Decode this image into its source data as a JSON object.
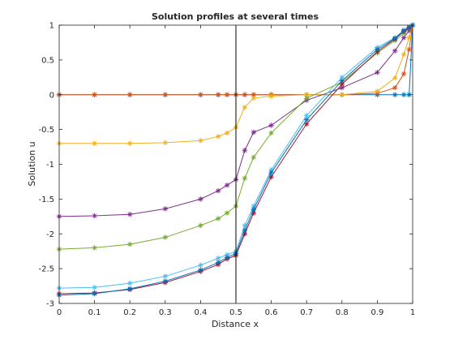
{
  "chart_data": {
    "type": "line",
    "title": "Solution profiles at several times",
    "xlabel": "Distance x",
    "ylabel": "Solution u",
    "xlim": [
      0,
      1
    ],
    "ylim": [
      -3,
      1
    ],
    "x_ticks": [
      "0",
      "0.1",
      "0.2",
      "0.3",
      "0.4",
      "0.5",
      "0.6",
      "0.7",
      "0.8",
      "0.9",
      "1"
    ],
    "y_ticks": [
      "1",
      "0.5",
      "0",
      "-0.5",
      "-1",
      "-1.5",
      "-2",
      "-2.5",
      "-3"
    ],
    "grid": false,
    "legend": false,
    "vertical_line_x": 0.5,
    "x": [
      0,
      0.1,
      0.2,
      0.3,
      0.4,
      0.45,
      0.475,
      0.5,
      0.525,
      0.55,
      0.6,
      0.7,
      0.8,
      0.9,
      0.95,
      0.975,
      0.99,
      1
    ],
    "series": [
      {
        "color": "#0072bd",
        "values": [
          0,
          0,
          0,
          0,
          0,
          0,
          0,
          0,
          0,
          0,
          0,
          0,
          0,
          0,
          0,
          0,
          0,
          1
        ]
      },
      {
        "color": "#d95319",
        "values": [
          0,
          0,
          0,
          0,
          0,
          0,
          0,
          0,
          0,
          0,
          0,
          0,
          0,
          0.02,
          0.1,
          0.3,
          0.65,
          1
        ]
      },
      {
        "color": "#edb120",
        "values": [
          -0.7,
          -0.7,
          -0.7,
          -0.69,
          -0.66,
          -0.6,
          -0.55,
          -0.47,
          -0.18,
          -0.05,
          -0.02,
          0,
          0,
          0.05,
          0.24,
          0.58,
          0.82,
          1
        ]
      },
      {
        "color": "#7e2f8e",
        "values": [
          -1.75,
          -1.74,
          -1.72,
          -1.64,
          -1.5,
          -1.38,
          -1.3,
          -1.22,
          -0.8,
          -0.54,
          -0.44,
          -0.08,
          0.1,
          0.32,
          0.63,
          0.82,
          0.92,
          1
        ]
      },
      {
        "color": "#77ac30",
        "values": [
          -2.22,
          -2.2,
          -2.15,
          -2.05,
          -1.88,
          -1.78,
          -1.7,
          -1.6,
          -1.2,
          -0.9,
          -0.55,
          -0.05,
          0.18,
          0.6,
          0.78,
          0.88,
          0.95,
          1
        ]
      },
      {
        "color": "#4dbeee",
        "values": [
          -2.78,
          -2.77,
          -2.71,
          -2.61,
          -2.45,
          -2.35,
          -2.3,
          -2.25,
          -1.88,
          -1.6,
          -1.08,
          -0.3,
          0.25,
          0.68,
          0.82,
          0.93,
          0.97,
          1
        ]
      },
      {
        "color": "#a2142f",
        "values": [
          -2.86,
          -2.85,
          -2.8,
          -2.7,
          -2.54,
          -2.44,
          -2.36,
          -2.31,
          -2.0,
          -1.7,
          -1.18,
          -0.42,
          0.15,
          0.62,
          0.8,
          0.91,
          0.96,
          1
        ]
      },
      {
        "color": "#0072bd",
        "values": [
          -2.88,
          -2.86,
          -2.79,
          -2.68,
          -2.52,
          -2.41,
          -2.34,
          -2.28,
          -1.95,
          -1.65,
          -1.12,
          -0.36,
          0.2,
          0.65,
          0.81,
          0.92,
          0.97,
          1
        ]
      }
    ]
  }
}
